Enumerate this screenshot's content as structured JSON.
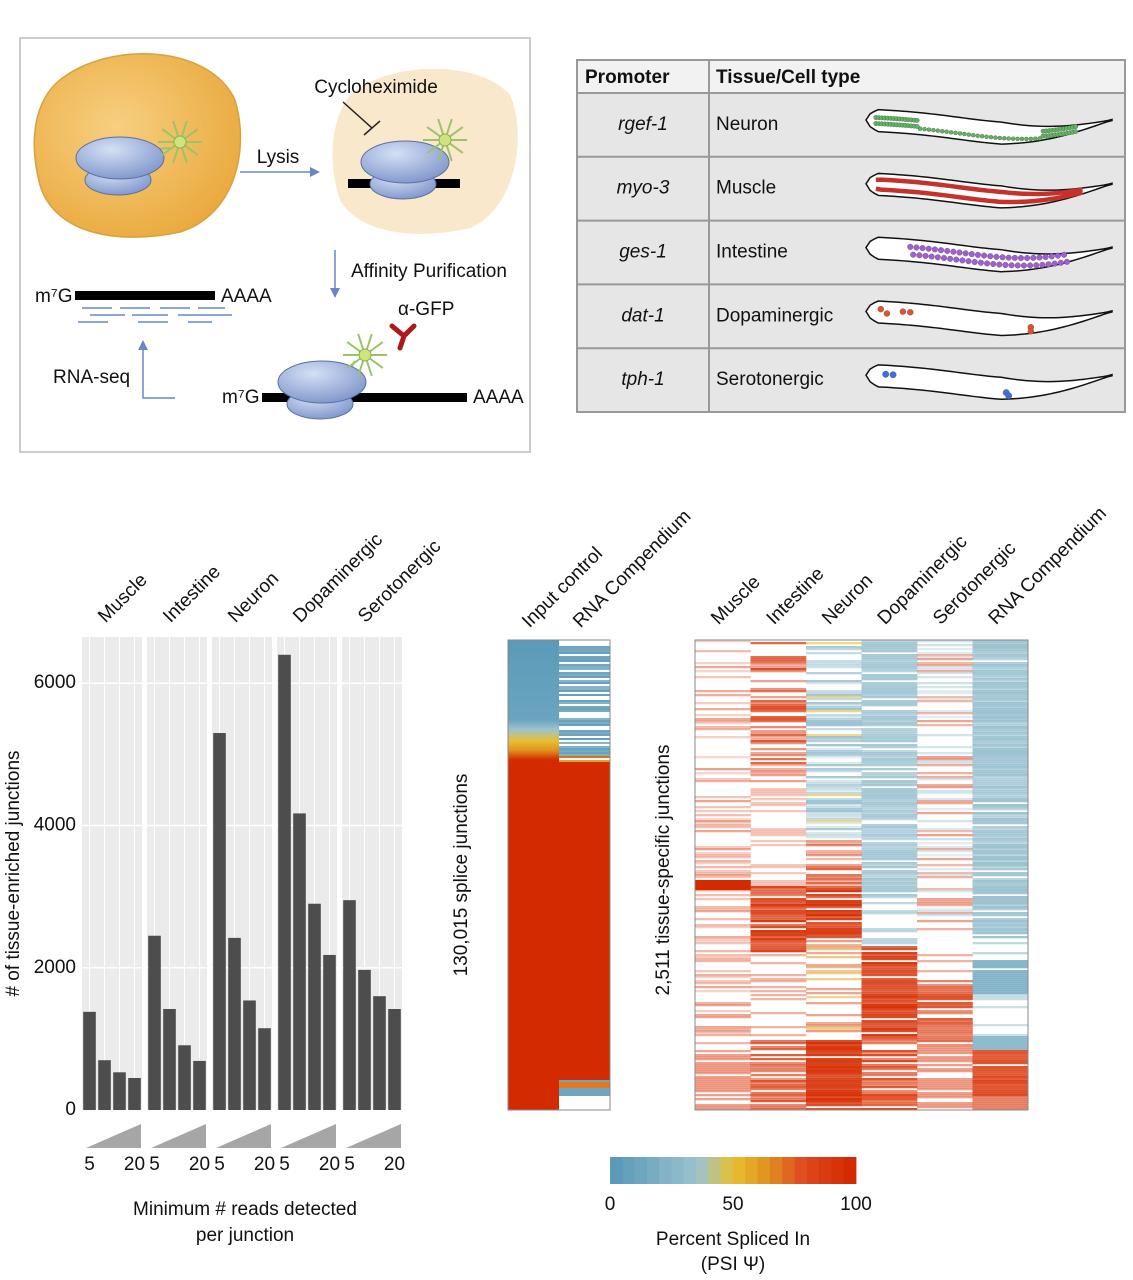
{
  "diagram": {
    "cycloheximide": "Cycloheximide",
    "lysis": "Lysis",
    "affinity": "Affinity Purification",
    "rnaseq": "RNA-seq",
    "antibody": "α-GFP",
    "cap": "m⁷G",
    "tail": "AAAA"
  },
  "table": {
    "header": [
      "Promoter",
      "Tissue/Cell type"
    ],
    "rows": [
      [
        "rgef-1",
        "Neuron"
      ],
      [
        "myo-3",
        "Muscle"
      ],
      [
        "ges-1",
        "Intestine"
      ],
      [
        "dat-1",
        "Dopaminergic"
      ],
      [
        "tph-1",
        "Serotonergic"
      ]
    ]
  },
  "chart_data": [
    {
      "type": "bar",
      "color": "#4d4d4d",
      "grid": true,
      "panels": [
        {
          "name": "Muscle",
          "values": [
            1380,
            700,
            530,
            450
          ]
        },
        {
          "name": "Intestine",
          "values": [
            2450,
            1420,
            910,
            690
          ]
        },
        {
          "name": "Neuron",
          "values": [
            5300,
            2420,
            1540,
            1150
          ]
        },
        {
          "name": "Dopaminergic",
          "values": [
            6400,
            4170,
            2900,
            2180
          ]
        },
        {
          "name": "Serotonergic",
          "values": [
            2950,
            1970,
            1600,
            1420
          ]
        }
      ],
      "xticks": [
        5,
        20
      ],
      "ylim": [
        0,
        6650
      ],
      "yticks": [
        0,
        2000,
        4000,
        6000
      ],
      "ylabel": "# of tissue-enriched junctions",
      "xlabel": [
        "Minimum # reads detected",
        "per junction"
      ]
    },
    {
      "type": "heatmap",
      "columns": [
        "Input control",
        "RNA Compendium"
      ],
      "ylabel": "130,015 splice junctions"
    },
    {
      "type": "heatmap",
      "columns": [
        "Muscle",
        "Intestine",
        "Neuron",
        "Dopaminergic",
        "Serotonergic",
        "RNA Compendium"
      ],
      "ylabel": "2,511 tissue-specific junctions",
      "colorbar": {
        "lim": [
          0,
          100
        ],
        "ticks": [
          0,
          50,
          100
        ],
        "label": [
          "Percent Spliced In",
          "(PSI Ψ)"
        ]
      }
    }
  ]
}
